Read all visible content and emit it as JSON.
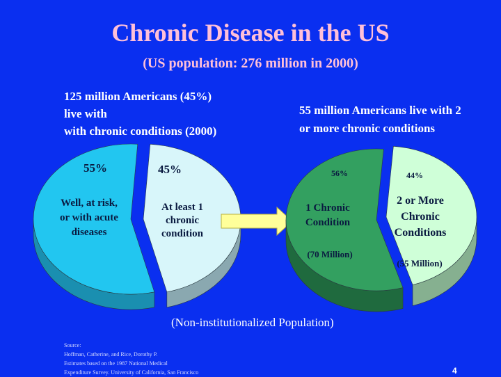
{
  "slide": {
    "title": "Chronic Disease in the US",
    "subtitle": "(US population: 276 million in 2000)",
    "left_heading": [
      "125 million Americans (45%)",
      "live with",
      "with chronic conditions (2000)"
    ],
    "right_heading": [
      "55 million Americans live with 2",
      "or more chronic conditions"
    ],
    "footnote": "(Non-institutionalized Population)",
    "source_lines": [
      "Source:",
      "Hoffman, Catherine, and Rice, Dorothy P.",
      "Estimates based on the 1987 National Medical",
      "Expenditure Survey.  University of California, San Francisco"
    ],
    "page_number": "4"
  },
  "colors": {
    "background": "#0a2ff0",
    "title": "#ffc0d8",
    "left_big_slice": "#22c6f0",
    "left_big_slice_side": "#1a8fb0",
    "left_small_slice": "#d8f6fa",
    "left_small_slice_side": "#8aa8b0",
    "right_big_slice": "#33a060",
    "right_big_slice_side": "#1f6a3e",
    "right_small_slice": "#cfffd8",
    "right_small_slice_side": "#86b090",
    "arrow": "#ffff9a"
  },
  "chart_data": [
    {
      "type": "pie",
      "slices": [
        {
          "value": 55,
          "pct_label": "55%",
          "lines": [
            "Well, at risk,",
            "or with acute",
            "diseases"
          ]
        },
        {
          "value": 45,
          "pct_label": "45%",
          "lines": [
            "At least 1",
            "chronic",
            "condition"
          ]
        }
      ]
    },
    {
      "type": "pie",
      "slices": [
        {
          "value": 56,
          "pct_label": "56%",
          "lines": [
            "1 Chronic",
            "Condition"
          ],
          "sub": "(70 Million)"
        },
        {
          "value": 44,
          "pct_label": "44%",
          "lines": [
            "2 or More",
            "Chronic",
            "Conditions"
          ],
          "sub": "(55 Million)"
        }
      ]
    }
  ]
}
